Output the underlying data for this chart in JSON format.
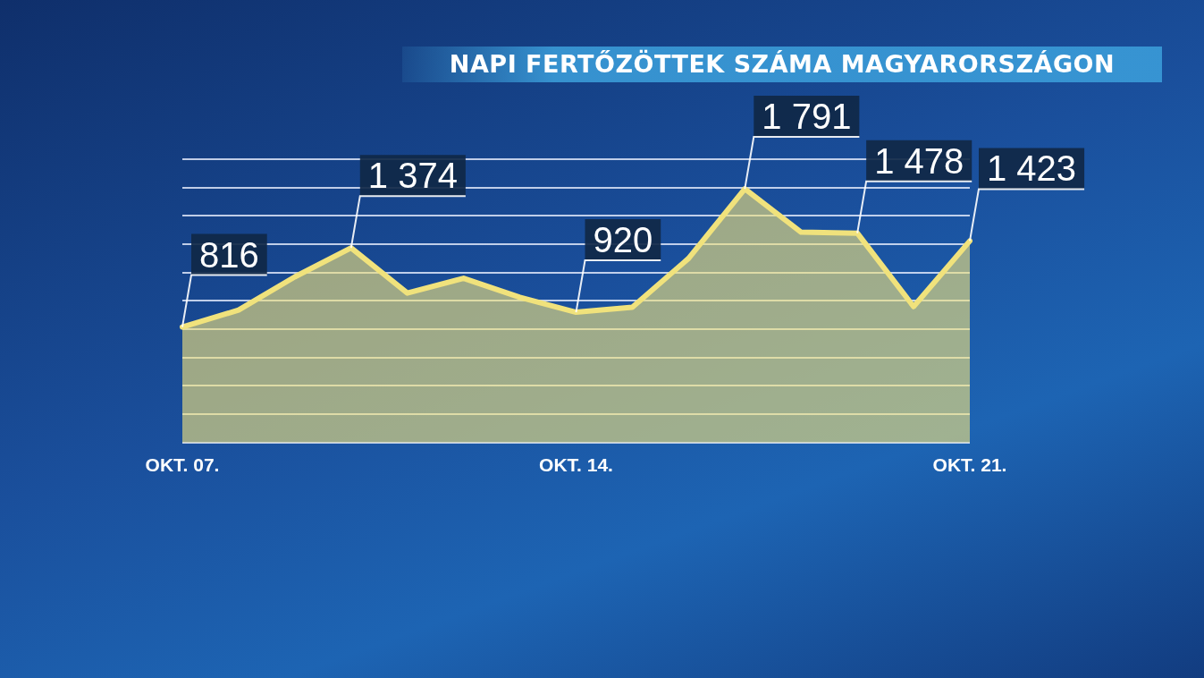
{
  "chart_data": {
    "type": "area",
    "title": "NAPI FERTŐZÖTTEK SZÁMA MAGYARORSZÁGON",
    "categories": [
      "OKT. 07.",
      null,
      null,
      null,
      null,
      null,
      null,
      "OKT. 14.",
      null,
      null,
      null,
      null,
      null,
      null,
      "OKT. 21."
    ],
    "values": [
      816,
      935,
      1170,
      1374,
      1055,
      1160,
      1025,
      920,
      955,
      1300,
      1791,
      1485,
      1478,
      960,
      1423
    ],
    "value_labels": [
      "816",
      null,
      null,
      "1 374",
      null,
      null,
      null,
      "920",
      null,
      null,
      "1 791",
      null,
      "1 478",
      null,
      "1 423"
    ],
    "color": "#f0e27c",
    "ylim": [
      0,
      2000
    ],
    "yticks": [
      {
        "value": 0,
        "label": null
      },
      {
        "value": 200,
        "label": null
      },
      {
        "value": 400,
        "label": null
      },
      {
        "value": 600,
        "label": null
      },
      {
        "value": 800,
        "label": null
      },
      {
        "value": 1000,
        "label": null
      },
      {
        "value": 1200,
        "label": null
      },
      {
        "value": 1400,
        "label": null
      },
      {
        "value": 1600,
        "label": null
      },
      {
        "value": 1800,
        "label": null
      },
      {
        "value": 2000,
        "label": null
      }
    ],
    "grid": "y",
    "tick_labels": "x",
    "legend": false,
    "marker": "none",
    "line_style": "solid"
  }
}
